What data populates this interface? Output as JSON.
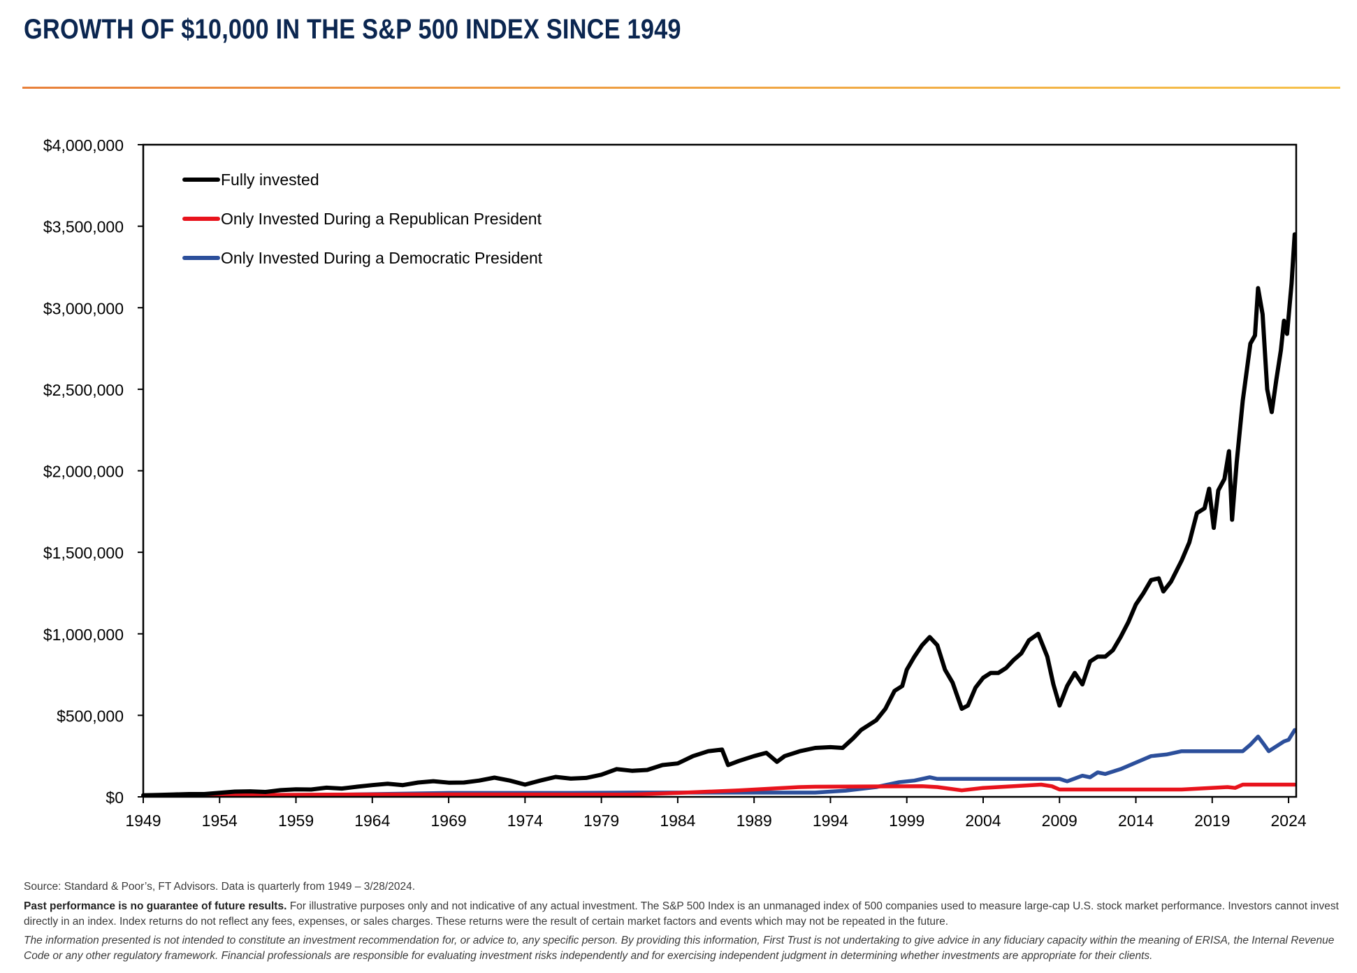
{
  "header": {
    "title": "GROWTH OF $10,000 IN THE S&P 500 INDEX SINCE 1949"
  },
  "chart_data": {
    "type": "line",
    "ylim": [
      0,
      4000000
    ],
    "xlim": [
      1949,
      2024.5
    ],
    "y_ticks": [
      0,
      500000,
      1000000,
      1500000,
      2000000,
      2500000,
      3000000,
      3500000,
      4000000
    ],
    "y_tick_labels": [
      "$0",
      "$500,000",
      "$1,000,000",
      "$1,500,000",
      "$2,000,000",
      "$2,500,000",
      "$3,000,000",
      "$3,500,000",
      "$4,000,000"
    ],
    "x_ticks": [
      1949,
      1954,
      1959,
      1964,
      1969,
      1974,
      1979,
      1984,
      1989,
      1994,
      1999,
      2004,
      2009,
      2014,
      2019,
      2024
    ],
    "x_tick_labels": [
      "1949",
      "1954",
      "1959",
      "1964",
      "1969",
      "1974",
      "1979",
      "1984",
      "1989",
      "1994",
      "1999",
      "2004",
      "2009",
      "2014",
      "2019",
      "2024"
    ],
    "legend_position": "top-left",
    "grid": false,
    "series": [
      {
        "name": "Fully invested",
        "color": "#000000",
        "points": [
          [
            1949,
            10000
          ],
          [
            1950,
            12000
          ],
          [
            1951,
            14500
          ],
          [
            1952,
            17000
          ],
          [
            1953,
            17000
          ],
          [
            1954,
            25000
          ],
          [
            1955,
            32000
          ],
          [
            1956,
            34000
          ],
          [
            1957,
            30000
          ],
          [
            1958,
            41000
          ],
          [
            1959,
            46000
          ],
          [
            1960,
            45000
          ],
          [
            1961,
            56000
          ],
          [
            1962,
            51000
          ],
          [
            1963,
            62000
          ],
          [
            1964,
            72000
          ],
          [
            1965,
            80000
          ],
          [
            1966,
            72000
          ],
          [
            1967,
            88000
          ],
          [
            1968,
            96000
          ],
          [
            1969,
            87000
          ],
          [
            1970,
            88000
          ],
          [
            1971,
            100000
          ],
          [
            1972,
            118000
          ],
          [
            1973,
            100000
          ],
          [
            1974,
            75000
          ],
          [
            1975,
            100000
          ],
          [
            1976,
            122000
          ],
          [
            1977,
            112000
          ],
          [
            1978,
            116000
          ],
          [
            1979,
            136000
          ],
          [
            1980,
            170000
          ],
          [
            1981,
            160000
          ],
          [
            1982,
            165000
          ],
          [
            1983,
            195000
          ],
          [
            1984,
            205000
          ],
          [
            1985,
            250000
          ],
          [
            1986,
            280000
          ],
          [
            1986.9,
            290000
          ],
          [
            1987.3,
            195000
          ],
          [
            1988,
            220000
          ],
          [
            1989,
            250000
          ],
          [
            1989.8,
            270000
          ],
          [
            1990.5,
            215000
          ],
          [
            1991,
            250000
          ],
          [
            1992,
            280000
          ],
          [
            1993,
            300000
          ],
          [
            1994,
            305000
          ],
          [
            1994.8,
            300000
          ],
          [
            1995.5,
            360000
          ],
          [
            1996,
            410000
          ],
          [
            1997,
            470000
          ],
          [
            1997.6,
            540000
          ],
          [
            1998.2,
            650000
          ],
          [
            1998.7,
            680000
          ],
          [
            1999,
            780000
          ],
          [
            1999.5,
            860000
          ],
          [
            2000,
            930000
          ],
          [
            2000.5,
            980000
          ],
          [
            2001,
            930000
          ],
          [
            2001.5,
            780000
          ],
          [
            2002,
            700000
          ],
          [
            2002.6,
            540000
          ],
          [
            2003,
            560000
          ],
          [
            2003.5,
            670000
          ],
          [
            2004,
            730000
          ],
          [
            2004.5,
            760000
          ],
          [
            2005,
            760000
          ],
          [
            2005.5,
            790000
          ],
          [
            2006,
            840000
          ],
          [
            2006.5,
            880000
          ],
          [
            2007,
            960000
          ],
          [
            2007.6,
            1000000
          ],
          [
            2008.2,
            860000
          ],
          [
            2008.6,
            690000
          ],
          [
            2009,
            560000
          ],
          [
            2009.5,
            680000
          ],
          [
            2010,
            760000
          ],
          [
            2010.5,
            690000
          ],
          [
            2011,
            830000
          ],
          [
            2011.5,
            860000
          ],
          [
            2012,
            860000
          ],
          [
            2012.5,
            900000
          ],
          [
            2013,
            980000
          ],
          [
            2013.5,
            1070000
          ],
          [
            2014,
            1180000
          ],
          [
            2014.5,
            1250000
          ],
          [
            2015,
            1330000
          ],
          [
            2015.5,
            1340000
          ],
          [
            2015.8,
            1260000
          ],
          [
            2016.3,
            1320000
          ],
          [
            2017,
            1450000
          ],
          [
            2017.5,
            1560000
          ],
          [
            2018,
            1740000
          ],
          [
            2018.5,
            1770000
          ],
          [
            2018.8,
            1890000
          ],
          [
            2019.1,
            1650000
          ],
          [
            2019.4,
            1880000
          ],
          [
            2019.8,
            1950000
          ],
          [
            2020.1,
            2120000
          ],
          [
            2020.3,
            1700000
          ],
          [
            2020.6,
            2050000
          ],
          [
            2021,
            2430000
          ],
          [
            2021.5,
            2780000
          ],
          [
            2021.8,
            2830000
          ],
          [
            2022,
            3120000
          ],
          [
            2022.3,
            2960000
          ],
          [
            2022.6,
            2500000
          ],
          [
            2022.9,
            2360000
          ],
          [
            2023.2,
            2560000
          ],
          [
            2023.5,
            2740000
          ],
          [
            2023.7,
            2920000
          ],
          [
            2023.9,
            2840000
          ],
          [
            2024.2,
            3150000
          ],
          [
            2024.4,
            3450000
          ]
        ]
      },
      {
        "name": "Only Invested During a Republican President",
        "color": "#e8131c",
        "points": [
          [
            1949,
            10000
          ],
          [
            1953,
            10000
          ],
          [
            1961,
            14000
          ],
          [
            1969,
            15000
          ],
          [
            1977,
            14000
          ],
          [
            1981,
            14000
          ],
          [
            1984,
            24000
          ],
          [
            1988,
            40000
          ],
          [
            1992,
            60000
          ],
          [
            1993,
            62000
          ],
          [
            2000,
            65000
          ],
          [
            2001,
            60000
          ],
          [
            2002.6,
            40000
          ],
          [
            2004,
            55000
          ],
          [
            2007.8,
            75000
          ],
          [
            2008.5,
            65000
          ],
          [
            2009,
            45000
          ],
          [
            2017,
            45000
          ],
          [
            2020,
            60000
          ],
          [
            2020.5,
            55000
          ],
          [
            2021,
            75000
          ],
          [
            2024.4,
            75000
          ]
        ]
      },
      {
        "name": "Only Invested During a Democratic President",
        "color": "#2c4f9b",
        "points": [
          [
            1949,
            10000
          ],
          [
            1953,
            12000
          ],
          [
            1961,
            12000
          ],
          [
            1969,
            24000
          ],
          [
            1977,
            24000
          ],
          [
            1981,
            26000
          ],
          [
            1993,
            26000
          ],
          [
            1995,
            38000
          ],
          [
            1997,
            60000
          ],
          [
            1998.5,
            90000
          ],
          [
            1999.5,
            100000
          ],
          [
            2000.5,
            120000
          ],
          [
            2001,
            110000
          ],
          [
            2009,
            110000
          ],
          [
            2009.5,
            95000
          ],
          [
            2010.5,
            130000
          ],
          [
            2011,
            120000
          ],
          [
            2011.5,
            150000
          ],
          [
            2012,
            140000
          ],
          [
            2013,
            170000
          ],
          [
            2014,
            210000
          ],
          [
            2015,
            250000
          ],
          [
            2016,
            260000
          ],
          [
            2017,
            280000
          ],
          [
            2021,
            280000
          ],
          [
            2021.5,
            320000
          ],
          [
            2022,
            370000
          ],
          [
            2022.4,
            320000
          ],
          [
            2022.7,
            280000
          ],
          [
            2023.2,
            310000
          ],
          [
            2023.7,
            340000
          ],
          [
            2024,
            350000
          ],
          [
            2024.4,
            410000
          ]
        ]
      }
    ]
  },
  "footer": {
    "source": "Source: Standard & Poor’s, FT Advisors. Data is quarterly from 1949 – 3/28/2024.",
    "disclaimer_bold": "Past performance is no guarantee of future results.",
    "disclaimer_text": " For illustrative purposes only and not indicative of any actual investment. The S&P 500 Index is an unmanaged index of 500 companies used to measure large-cap U.S. stock market performance. Investors cannot invest directly in an index. Index returns do not reflect any fees, expenses, or sales charges. These returns were the result of certain market factors and events which may not be repeated in the future.",
    "info": "The information presented is not intended to constitute an investment recommendation for, or advice to, any specific person. By providing this information, First Trust is not undertaking to give advice in any fiduciary capacity within the meaning of ERISA, the Internal Revenue Code or any other regulatory framework. Financial professionals are responsible for evaluating investment risks independently and for exercising independent judgment in determining whether investments are appropriate for their clients."
  }
}
